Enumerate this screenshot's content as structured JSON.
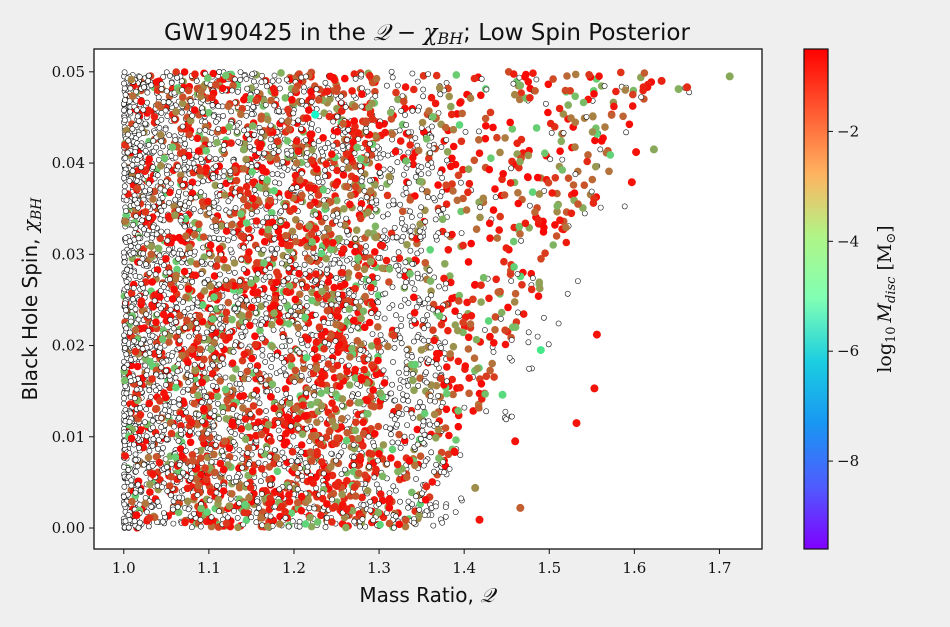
{
  "chart_data": {
    "type": "scatter",
    "title_text": "GW190425 in the ",
    "title_math": "𝒬 − χ",
    "title_sub": "BH",
    "title_tail": "; Low Spin Posterior",
    "xlabel_text": "Mass Ratio, ",
    "xlabel_math": "𝒬",
    "ylabel_text": "Black Hole Spin, ",
    "ylabel_math": "χ",
    "ylabel_sub": "BH",
    "xlim": [
      0.965,
      1.75
    ],
    "ylim": [
      -0.0023,
      0.0525
    ],
    "xticks": [
      1.0,
      1.1,
      1.2,
      1.3,
      1.4,
      1.5,
      1.6,
      1.7
    ],
    "xtick_labels": [
      "1.0",
      "1.1",
      "1.2",
      "1.3",
      "1.4",
      "1.5",
      "1.6",
      "1.7"
    ],
    "yticks": [
      0.0,
      0.01,
      0.02,
      0.03,
      0.04,
      0.05
    ],
    "ytick_labels": [
      "0.00",
      "0.01",
      "0.02",
      "0.03",
      "0.04",
      "0.05"
    ],
    "colorbar": {
      "label_prefix": "log",
      "label_base": "10",
      "label_var": "M",
      "label_sub": "disc",
      "label_unit": "[M",
      "label_unit_sub": "⊙",
      "label_unit_close": "]",
      "range": [
        -9.6,
        -0.5
      ],
      "ticks": [
        -2,
        -4,
        -6,
        -8
      ],
      "tick_labels": [
        "−2",
        "−4",
        "−6",
        "−8"
      ],
      "colormap": "rainbow"
    },
    "series": [
      {
        "values_shown": "colored by log10 M_disc (mostly −0.5 to −3)",
        "q_range": [
          1.0,
          1.715
        ],
        "chi_range": [
          0.0,
          0.05
        ],
        "sample_points": [
          {
            "q": 1.712,
            "chi": 0.0495,
            "c": -2.6
          },
          {
            "q": 1.662,
            "chi": 0.0483,
            "c": -1.0
          },
          {
            "q": 1.652,
            "chi": 0.0481,
            "c": -2.7
          },
          {
            "q": 1.632,
            "chi": 0.049,
            "c": -0.9
          },
          {
            "q": 1.623,
            "chi": 0.0415,
            "c": -2.6
          },
          {
            "q": 1.602,
            "chi": 0.0412,
            "c": -0.7
          },
          {
            "q": 1.597,
            "chi": 0.0379,
            "c": -0.7
          },
          {
            "q": 1.556,
            "chi": 0.0212,
            "c": -0.7
          },
          {
            "q": 1.553,
            "chi": 0.0153,
            "c": -0.7
          },
          {
            "q": 1.532,
            "chi": 0.0115,
            "c": -0.7
          },
          {
            "q": 1.46,
            "chi": 0.0095,
            "c": -0.7
          },
          {
            "q": 1.418,
            "chi": 0.0009,
            "c": -0.7
          },
          {
            "q": 1.466,
            "chi": 0.0022,
            "c": -1.6
          },
          {
            "q": 1.445,
            "chi": 0.0146,
            "c": -3.5
          },
          {
            "q": 1.225,
            "chi": 0.0453,
            "c": -5.8
          },
          {
            "q": 1.413,
            "chi": 0.0044,
            "c": -2.2
          },
          {
            "q": 1.49,
            "chi": 0.0195,
            "c": -3.8
          }
        ]
      },
      {
        "values_shown": "white open markers (no disc)",
        "q_range": [
          1.0,
          1.71
        ],
        "chi_range": [
          0.0,
          0.05
        ]
      }
    ]
  }
}
